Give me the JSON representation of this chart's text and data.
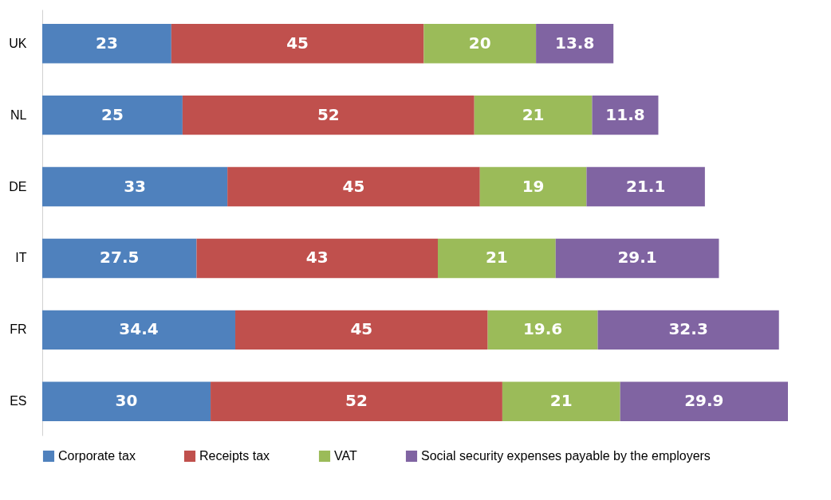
{
  "chart_data": {
    "type": "bar",
    "orientation": "horizontal",
    "stacked": true,
    "data_labels": true,
    "legend": "bottom",
    "categories": [
      "UK",
      "NL",
      "DE",
      "IT",
      "FR",
      "ES"
    ],
    "series": [
      {
        "name": "Corporate tax",
        "color": "#4f81bd",
        "values": [
          23,
          25,
          33,
          27.5,
          34.4,
          30
        ]
      },
      {
        "name": "Receipts tax",
        "color": "#c0504d",
        "values": [
          45,
          52,
          45,
          43,
          45,
          52
        ]
      },
      {
        "name": "VAT",
        "color": "#9bbb59",
        "values": [
          20,
          21,
          19,
          21,
          19.6,
          21
        ]
      },
      {
        "name": "Social security expenses payable by the employers",
        "color": "#8064a2",
        "values": [
          13.8,
          11.8,
          21.1,
          29.1,
          32.3,
          29.9
        ]
      }
    ]
  }
}
